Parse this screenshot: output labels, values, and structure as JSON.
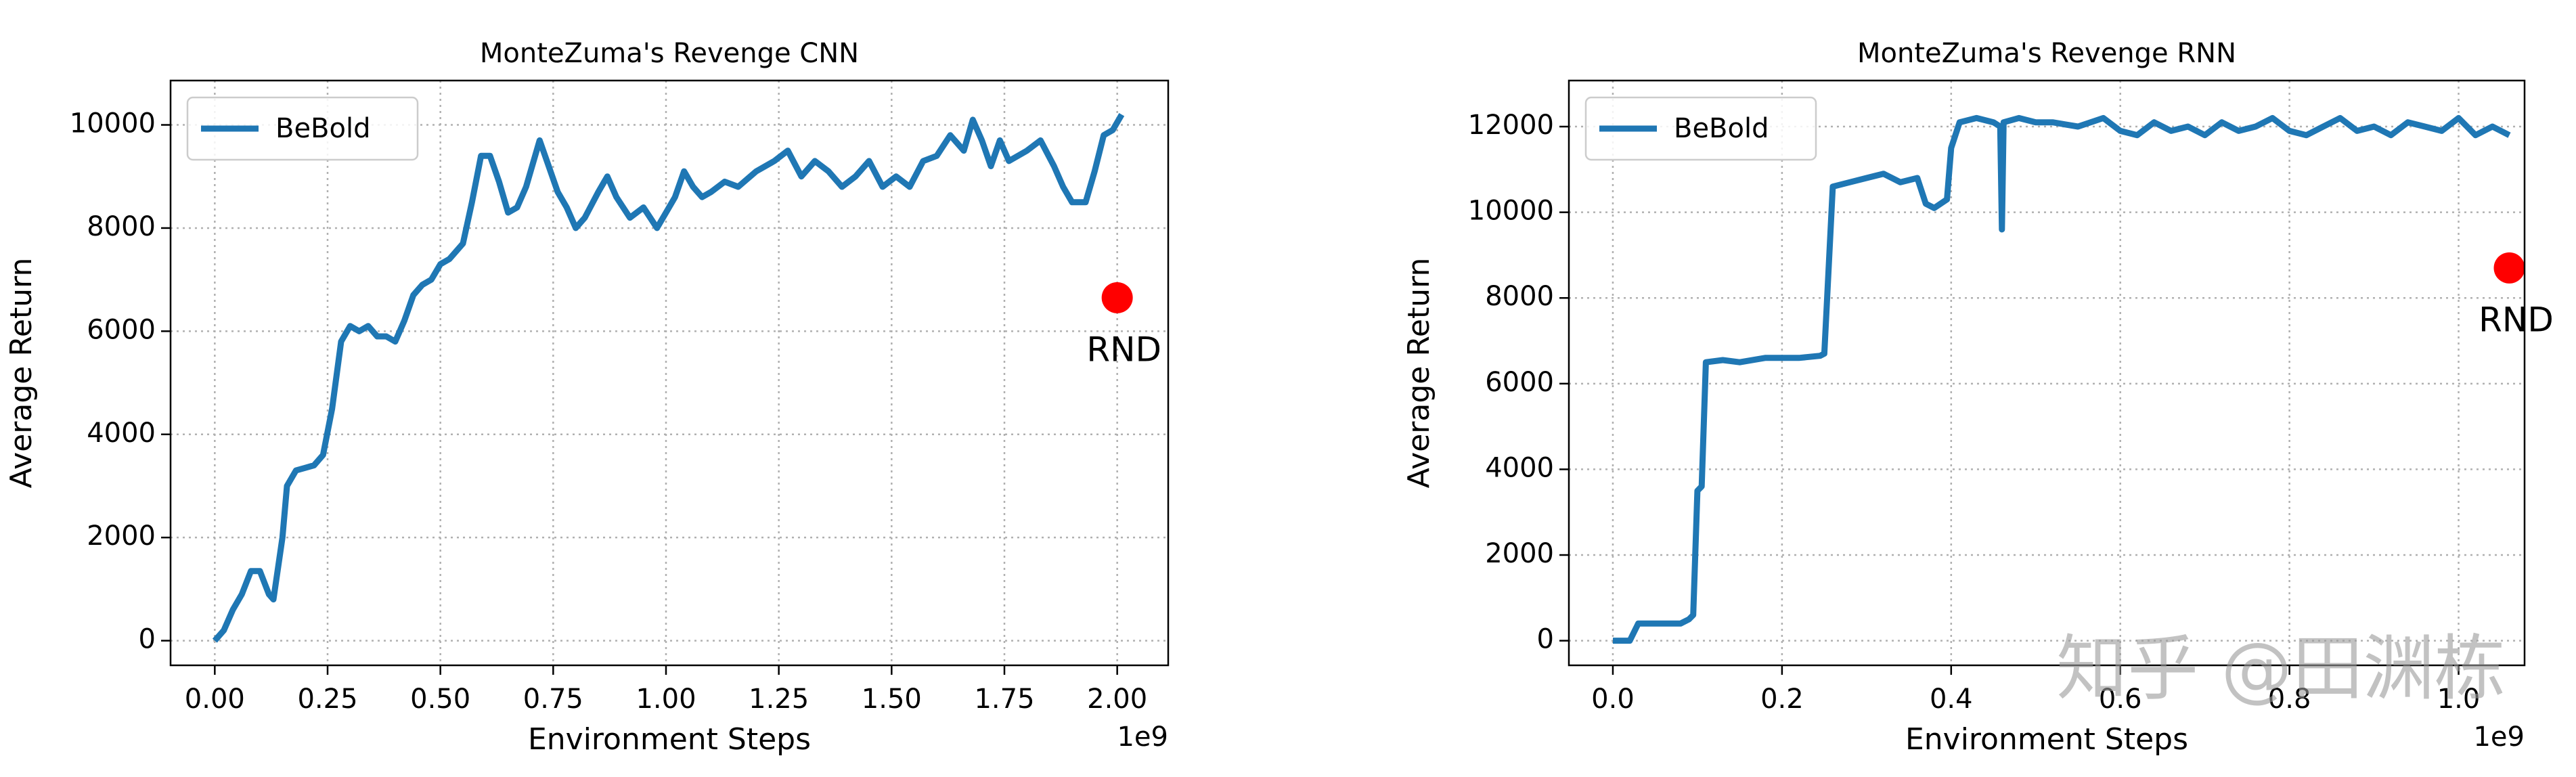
{
  "chart_data": [
    {
      "type": "line",
      "title": "MonteZuma's Revenge CNN",
      "xlabel": "Environment Steps",
      "ylabel": "Average Return",
      "x_offset_label": "1e9",
      "x": [
        0,
        0.02,
        0.04,
        0.06,
        0.08,
        0.1,
        0.12,
        0.13,
        0.15,
        0.16,
        0.18,
        0.2,
        0.22,
        0.24,
        0.26,
        0.28,
        0.3,
        0.32,
        0.34,
        0.36,
        0.38,
        0.4,
        0.42,
        0.44,
        0.46,
        0.48,
        0.5,
        0.52,
        0.55,
        0.57,
        0.59,
        0.61,
        0.63,
        0.65,
        0.67,
        0.69,
        0.72,
        0.74,
        0.76,
        0.78,
        0.8,
        0.82,
        0.85,
        0.87,
        0.89,
        0.92,
        0.95,
        0.98,
        1.0,
        1.02,
        1.04,
        1.06,
        1.08,
        1.1,
        1.13,
        1.16,
        1.2,
        1.24,
        1.27,
        1.3,
        1.33,
        1.36,
        1.39,
        1.42,
        1.45,
        1.48,
        1.51,
        1.54,
        1.57,
        1.6,
        1.63,
        1.66,
        1.68,
        1.7,
        1.72,
        1.74,
        1.76,
        1.8,
        1.83,
        1.86,
        1.88,
        1.9,
        1.93,
        1.95,
        1.97,
        1.99,
        2.01
      ],
      "series": [
        {
          "name": "BeBold",
          "color": "#1f77b4",
          "values": [
            0,
            200,
            600,
            900,
            1350,
            1350,
            900,
            800,
            2000,
            3000,
            3300,
            3350,
            3400,
            3600,
            4500,
            5800,
            6100,
            6000,
            6100,
            5900,
            5900,
            5800,
            6200,
            6700,
            6900,
            7000,
            7300,
            7400,
            7700,
            8500,
            9400,
            9400,
            8900,
            8300,
            8400,
            8800,
            9700,
            9200,
            8700,
            8400,
            8000,
            8200,
            8700,
            9000,
            8600,
            8200,
            8400,
            8000,
            8300,
            8600,
            9100,
            8800,
            8600,
            8700,
            8900,
            8800,
            9100,
            9300,
            9500,
            9000,
            9300,
            9100,
            8800,
            9000,
            9300,
            8800,
            9000,
            8800,
            9300,
            9400,
            9800,
            9500,
            10100,
            9700,
            9200,
            9700,
            9300,
            9500,
            9700,
            9200,
            8800,
            8500,
            8500,
            9100,
            9800,
            9900,
            10200
          ]
        }
      ],
      "xlim": [
        -0.098,
        2.113
      ],
      "ylim": [
        -478,
        10860
      ],
      "xticks": [
        {
          "value": 0,
          "label": "0.00"
        },
        {
          "value": 0.25,
          "label": "0.25"
        },
        {
          "value": 0.5,
          "label": "0.50"
        },
        {
          "value": 0.75,
          "label": "0.75"
        },
        {
          "value": 1,
          "label": "1.00"
        },
        {
          "value": 1.25,
          "label": "1.25"
        },
        {
          "value": 1.5,
          "label": "1.50"
        },
        {
          "value": 1.75,
          "label": "1.75"
        },
        {
          "value": 2,
          "label": "2.00"
        }
      ],
      "yticks": [
        0,
        2000,
        4000,
        6000,
        8000,
        10000
      ],
      "grid": true,
      "legend": "upper left",
      "annotations": [
        {
          "text": "RND",
          "x": 2.0,
          "y": 6650,
          "color": "#ff0000"
        }
      ]
    },
    {
      "type": "line",
      "title": "MonteZuma's Revenge RNN",
      "xlabel": "Environment Steps",
      "ylabel": "Average Return",
      "x_offset_label": "1e9",
      "x": [
        0,
        0.02,
        0.03,
        0.05,
        0.08,
        0.09,
        0.095,
        0.1,
        0.105,
        0.11,
        0.13,
        0.15,
        0.18,
        0.2,
        0.22,
        0.245,
        0.25,
        0.26,
        0.28,
        0.3,
        0.32,
        0.34,
        0.36,
        0.37,
        0.38,
        0.395,
        0.4,
        0.41,
        0.43,
        0.45,
        0.458,
        0.46,
        0.462,
        0.48,
        0.5,
        0.52,
        0.55,
        0.58,
        0.6,
        0.62,
        0.64,
        0.66,
        0.68,
        0.7,
        0.72,
        0.74,
        0.76,
        0.78,
        0.8,
        0.82,
        0.84,
        0.86,
        0.88,
        0.9,
        0.92,
        0.94,
        0.96,
        0.98,
        1.0,
        1.02,
        1.04,
        1.06
      ],
      "series": [
        {
          "name": "BeBold",
          "color": "#1f77b4",
          "values": [
            0,
            0,
            400,
            400,
            400,
            500,
            600,
            3500,
            3600,
            6500,
            6550,
            6500,
            6600,
            6600,
            6600,
            6650,
            6700,
            10600,
            10700,
            10800,
            10900,
            10700,
            10800,
            10200,
            10100,
            10300,
            11500,
            12100,
            12200,
            12100,
            12000,
            9600,
            12100,
            12200,
            12100,
            12100,
            12000,
            12200,
            11900,
            11800,
            12100,
            11900,
            12000,
            11800,
            12100,
            11900,
            12000,
            12200,
            11900,
            11800,
            12000,
            12200,
            11900,
            12000,
            11800,
            12100,
            12000,
            11900,
            12200,
            11800,
            12000,
            11800
          ]
        }
      ],
      "xlim": [
        -0.052,
        1.078
      ],
      "ylim": [
        -575,
        13075
      ],
      "xticks": [
        {
          "value": 0,
          "label": "0.0"
        },
        {
          "value": 0.2,
          "label": "0.2"
        },
        {
          "value": 0.4,
          "label": "0.4"
        },
        {
          "value": 0.6,
          "label": "0.6"
        },
        {
          "value": 0.8,
          "label": "0.8"
        },
        {
          "value": 1,
          "label": "1.0"
        }
      ],
      "yticks": [
        0,
        2000,
        4000,
        6000,
        8000,
        10000,
        12000
      ],
      "grid": true,
      "legend": "upper left",
      "annotations": [
        {
          "text": "RND",
          "x": 1.06,
          "y": 8700,
          "color": "#ff0000"
        }
      ]
    }
  ],
  "watermark": "知乎 @田渊栋"
}
